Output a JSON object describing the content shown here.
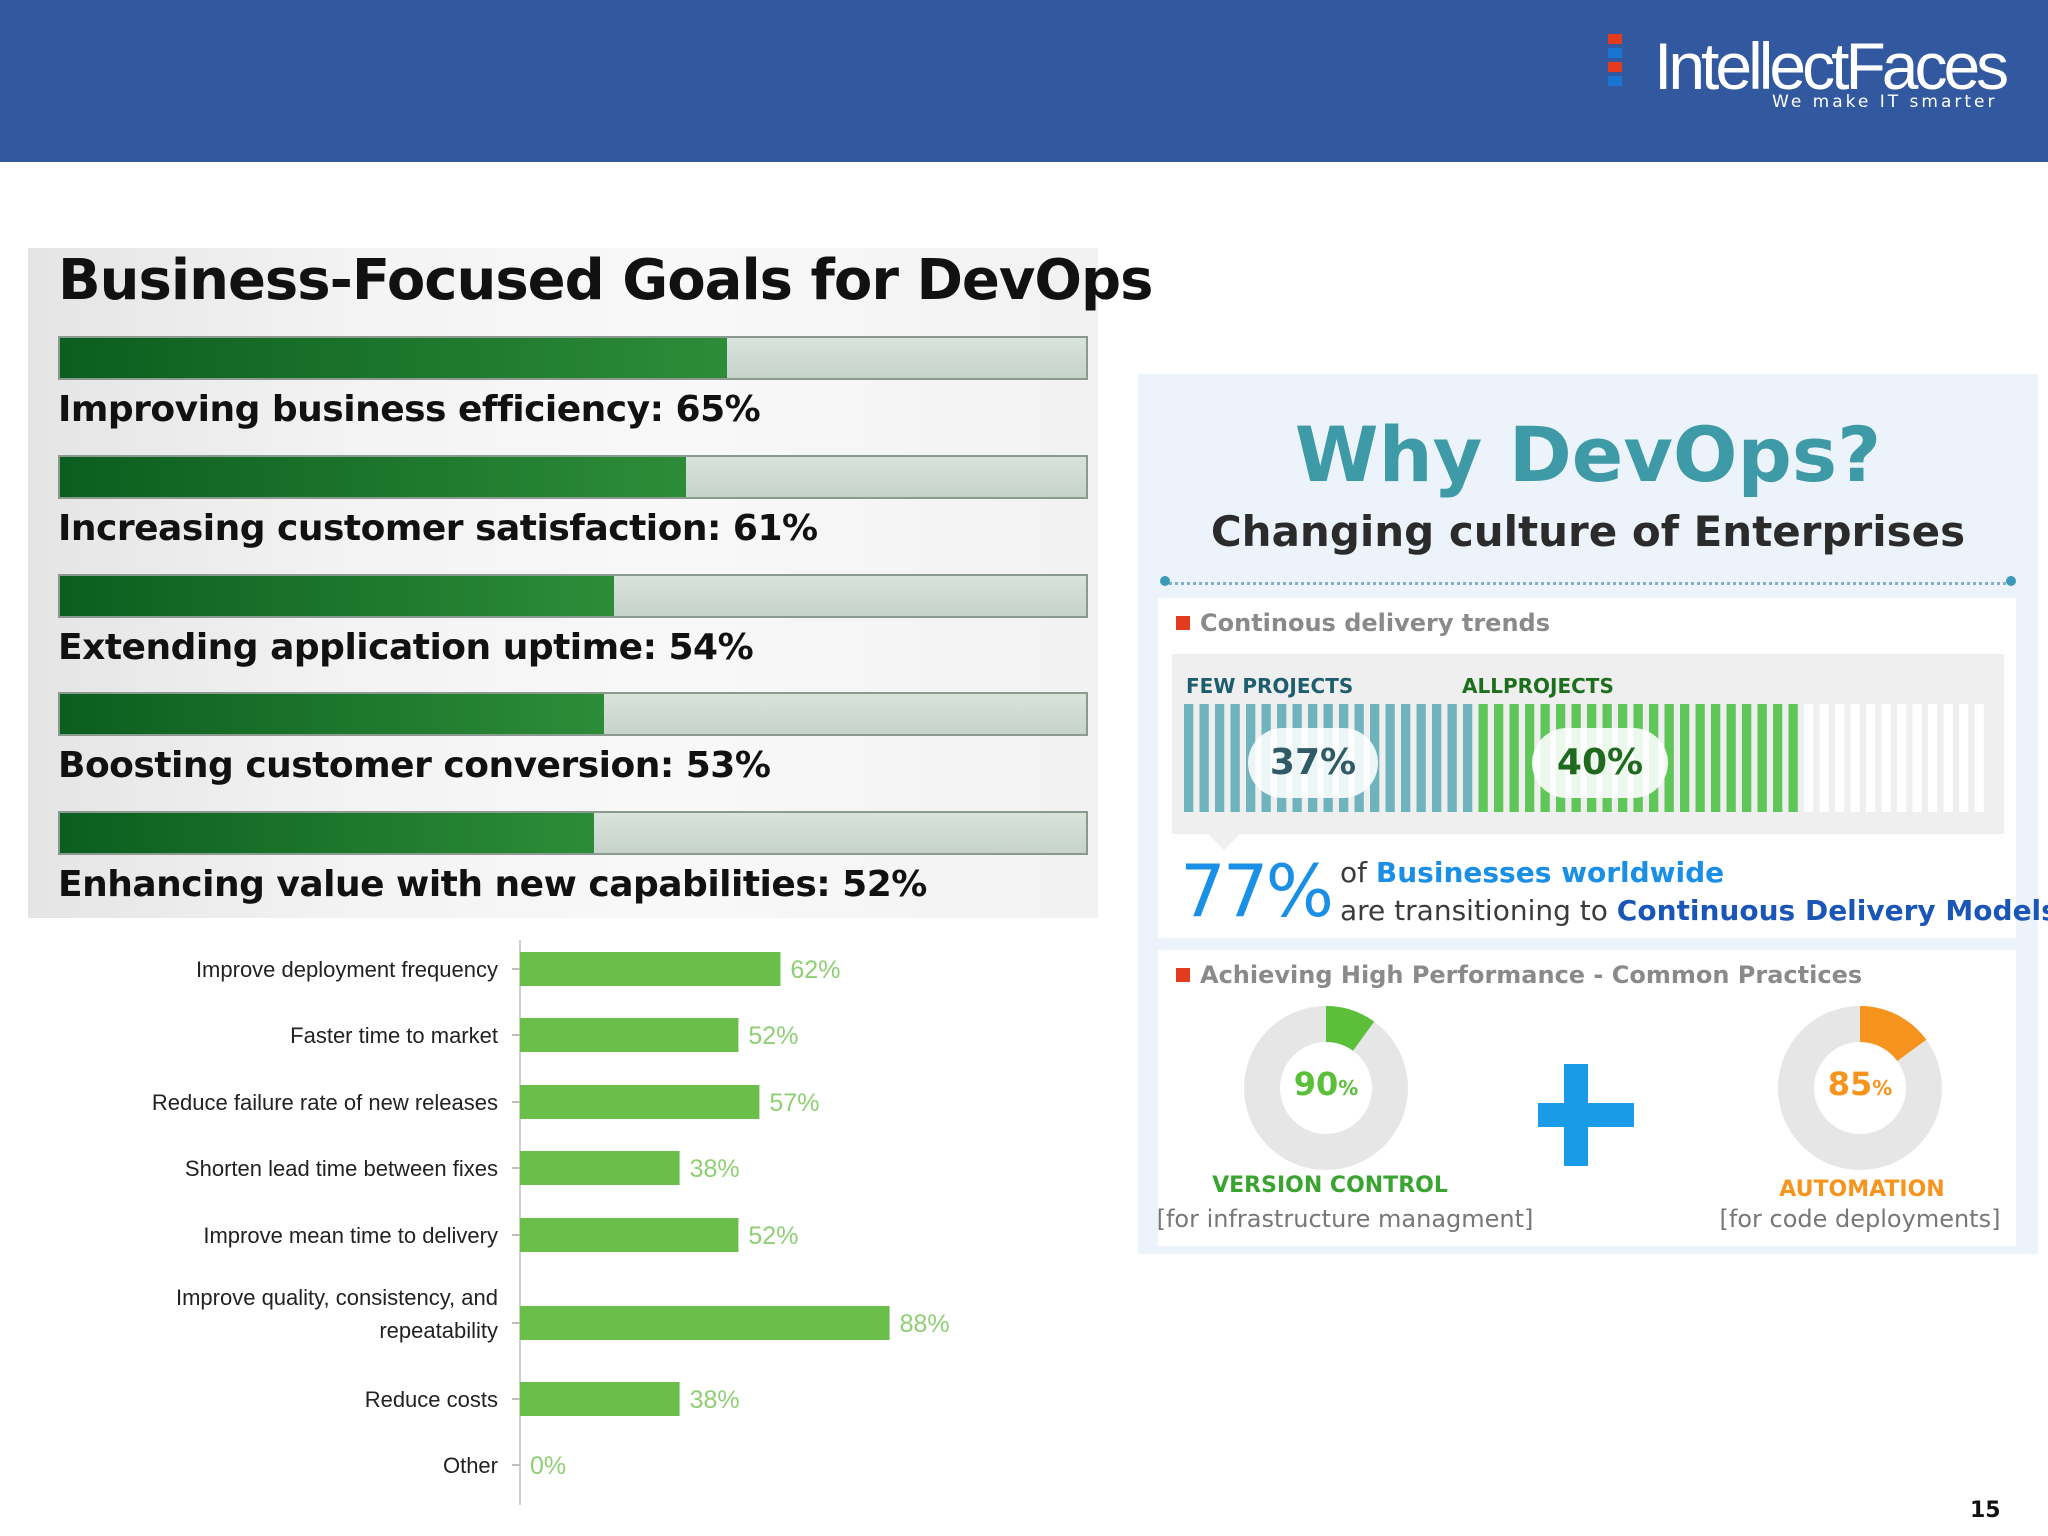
{
  "brand": {
    "name": "IntellectFaces",
    "tagline": "We make IT smarter",
    "colors": {
      "header": "#3258a0",
      "mark_red": "#e23b1e",
      "mark_blue": "#1a74d2"
    }
  },
  "business_goals": {
    "title": "Business-Focused Goals for DevOps",
    "items": [
      {
        "label": "Improving business efficiency: 65%",
        "value": 65
      },
      {
        "label": "Increasing customer satisfaction: 61%",
        "value": 61
      },
      {
        "label": "Extending application uptime: 54%",
        "value": 54
      },
      {
        "label": "Boosting customer conversion: 53%",
        "value": 53
      },
      {
        "label": "Enhancing value with new capabilities: 52%",
        "value": 52
      }
    ]
  },
  "chart_data": [
    {
      "type": "bar",
      "orientation": "horizontal",
      "title": "Business-Focused Goals for DevOps",
      "categories": [
        "Improving business efficiency",
        "Increasing customer satisfaction",
        "Extending application uptime",
        "Boosting customer conversion",
        "Enhancing value with new capabilities"
      ],
      "values": [
        65,
        61,
        54,
        53,
        52
      ],
      "xlim": [
        0,
        100
      ],
      "unit": "%"
    },
    {
      "type": "bar",
      "orientation": "horizontal",
      "title": "",
      "categories": [
        [
          "Improve deployment frequency"
        ],
        [
          "Faster time to market"
        ],
        [
          "Reduce failure rate of new releases"
        ],
        [
          "Shorten lead time between fixes"
        ],
        [
          "Improve mean time to delivery"
        ],
        [
          "Improve quality, consistency, and",
          "repeatability"
        ],
        [
          "Reduce costs"
        ],
        [
          "Other"
        ]
      ],
      "values": [
        62,
        52,
        57,
        38,
        52,
        88,
        38,
        0
      ],
      "value_labels": [
        "62%",
        "52%",
        "57%",
        "38%",
        "52%",
        "88%",
        "38%",
        "0%"
      ],
      "xlim": [
        0,
        100
      ],
      "bar_color": "#6abf4b",
      "label_color": "#8fcf73"
    }
  ],
  "why_devops": {
    "title": "Why DevOps?",
    "subtitle": "Changing culture of Enterprises"
  },
  "trends": {
    "heading": "Continous delivery trends",
    "few_label": "FEW PROJECTS",
    "all_label": "ALLPROJECTS",
    "few_value": "37%",
    "all_value": "40%",
    "few_pct": 37,
    "all_pct": 40,
    "colors": {
      "few": "#6fb3bf",
      "all": "#5fc75a",
      "rest": "#ffffff"
    }
  },
  "stat": {
    "value": "77%",
    "line1_pre": "of",
    "line1_em": "Businesses worldwide",
    "line2_pre": "are transitioning to",
    "line2_em": "Continuous Delivery Models"
  },
  "practices": {
    "heading": "Achieving High Performance - Common Practices",
    "version_control": {
      "pct": "90",
      "unit": "%",
      "value": 90,
      "label": "VERSION CONTROL",
      "sub": "[for infrastructure managment]",
      "color": "#5cbf3a"
    },
    "automation": {
      "pct": "85",
      "unit": "%",
      "value": 85,
      "label": "AUTOMATION",
      "sub": "[for code deployments]",
      "color": "#f7941d"
    }
  },
  "page_number": "15"
}
